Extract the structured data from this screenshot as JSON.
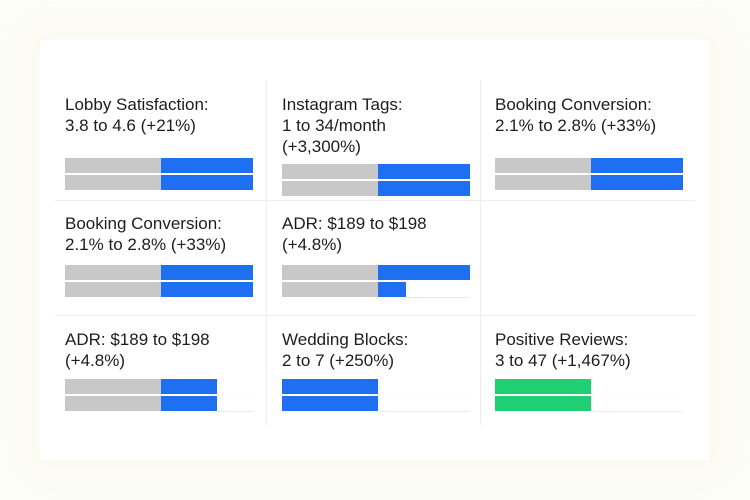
{
  "colors": {
    "baseline": "#c8c8c8",
    "improved": "#1e6ff1",
    "highlight": "#1fd073",
    "track": "#eaeaea"
  },
  "chart_data": [
    {
      "type": "bar",
      "title_lines": [
        "Lobby Satisfaction:",
        "3.8 to 4.6 (+21%)"
      ],
      "series": [
        {
          "values": [
            1.0
          ]
        },
        {
          "values": [
            1.0
          ]
        }
      ],
      "split": 0.51,
      "highlight": false
    },
    {
      "type": "bar",
      "title_lines": [
        "Instagram Tags:",
        "1 to 34/month",
        "(+3,300%)"
      ],
      "series": [
        {
          "values": [
            1.0
          ]
        },
        {
          "values": [
            1.0
          ]
        }
      ],
      "split": 0.51,
      "highlight": false
    },
    {
      "type": "bar",
      "title_lines": [
        "Booking Conversion:",
        "2.1% to 2.8% (+33%)"
      ],
      "series": [
        {
          "values": [
            1.0
          ]
        },
        {
          "values": [
            1.0
          ]
        }
      ],
      "split": 0.51,
      "highlight": false
    },
    {
      "type": "bar",
      "title_lines": [
        "Booking Conversion:",
        "2.1% to 2.8% (+33%)"
      ],
      "series": [
        {
          "values": [
            1.0
          ]
        },
        {
          "values": [
            1.0
          ]
        }
      ],
      "split": 0.51,
      "highlight": false
    },
    {
      "type": "bar",
      "title_lines": [
        "ADR: $189 to $198",
        "(+4.8%)"
      ],
      "series": [
        {
          "values": [
            1.0
          ]
        },
        {
          "values": [
            0.66
          ]
        }
      ],
      "split": 0.51,
      "highlight": false
    },
    {
      "type": "bar",
      "title_lines": [
        "ADR: $189 to $198",
        "(+4.8%)"
      ],
      "series": [
        {
          "values": [
            0.81
          ]
        },
        {
          "values": [
            0.81
          ]
        }
      ],
      "split": 0.51,
      "highlight": false
    },
    {
      "type": "bar",
      "title_lines": [
        "Wedding Blocks:",
        "2 to 7 (+250%)"
      ],
      "series": [
        {
          "values": [
            0.51
          ]
        },
        {
          "values": [
            0.51
          ]
        }
      ],
      "split": 0.0,
      "highlight": false
    },
    {
      "type": "bar",
      "title_lines": [
        "Positive Reviews:",
        "3 to 47 (+1,467%)"
      ],
      "series": [
        {
          "values": [
            0.51
          ]
        },
        {
          "values": [
            0.51
          ]
        }
      ],
      "split": 0.0,
      "highlight": true
    }
  ]
}
